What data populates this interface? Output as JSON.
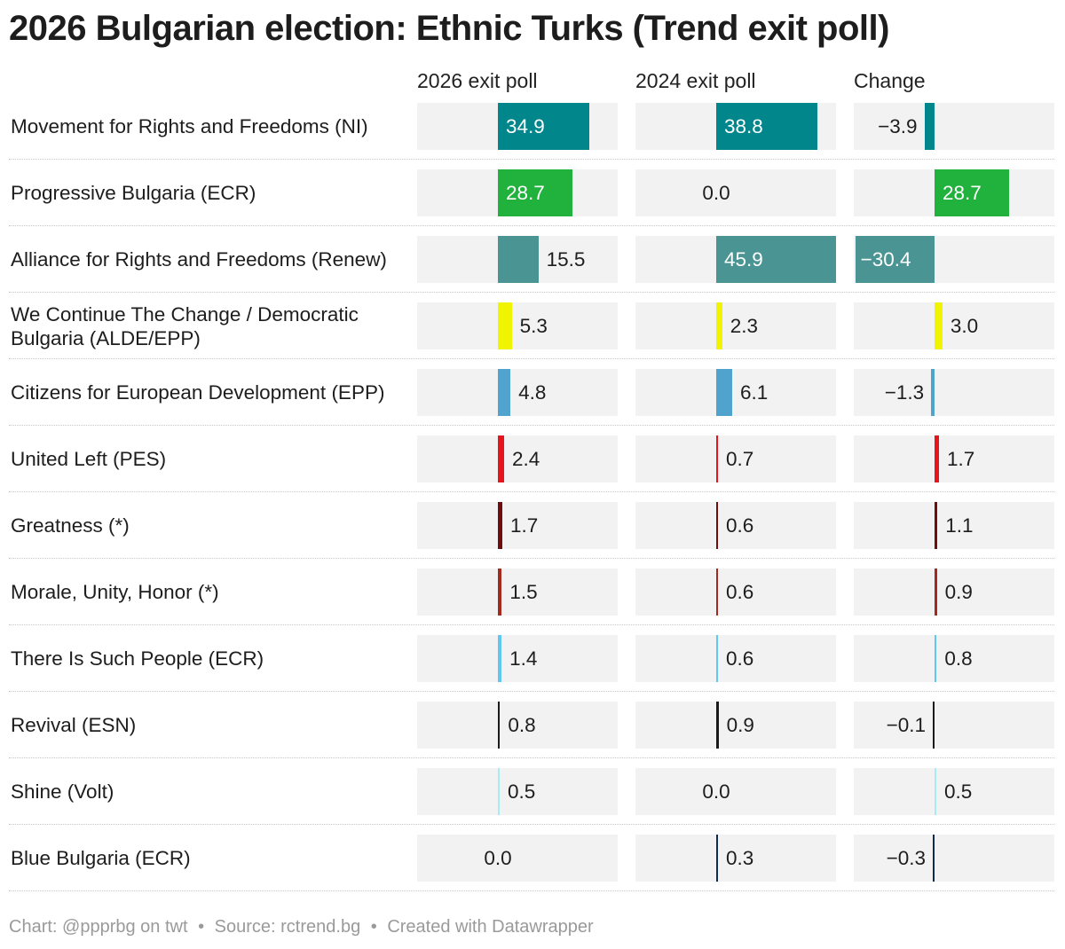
{
  "title": "2026 Bulgarian election: Ethnic Turks (Trend exit poll)",
  "footer": {
    "chart_credit": "Chart: @ppprbg on twt",
    "source": "Source: rctrend.bg",
    "created": "Created with Datawrapper",
    "separator": "•"
  },
  "chart_data": {
    "type": "table",
    "columns": [
      "2026 exit poll",
      "2024 exit poll",
      "Change"
    ],
    "rows": [
      {
        "party": "Movement for Rights and Freedoms (NI)",
        "color": "#00868b",
        "v2026": 34.9,
        "v2024": 38.8,
        "change": -3.9
      },
      {
        "party": "Progressive Bulgaria (ECR)",
        "color": "#21b23e",
        "v2026": 28.7,
        "v2024": 0.0,
        "change": 28.7
      },
      {
        "party": "Alliance for Rights and Freedoms (Renew)",
        "color": "#4a9594",
        "v2026": 15.5,
        "v2024": 45.9,
        "change": -30.4
      },
      {
        "party": "We Continue The Change / Democratic Bulgaria (ALDE/EPP)",
        "color": "#f0f400",
        "v2026": 5.3,
        "v2024": 2.3,
        "change": 3.0
      },
      {
        "party": "Citizens for European Development (EPP)",
        "color": "#4fa3cc",
        "v2026": 4.8,
        "v2024": 6.1,
        "change": -1.3
      },
      {
        "party": "United Left (PES)",
        "color": "#e8141b",
        "v2026": 2.4,
        "v2024": 0.7,
        "change": 1.7
      },
      {
        "party": "Greatness (*)",
        "color": "#6e0d0d",
        "v2026": 1.7,
        "v2024": 0.6,
        "change": 1.1
      },
      {
        "party": "Morale, Unity, Honor (*)",
        "color": "#a52a1e",
        "v2026": 1.5,
        "v2024": 0.6,
        "change": 0.9
      },
      {
        "party": "There Is Such People (ECR)",
        "color": "#5ec8f0",
        "v2026": 1.4,
        "v2024": 0.6,
        "change": 0.8
      },
      {
        "party": "Revival (ESN)",
        "color": "#1a1a1a",
        "v2026": 0.8,
        "v2024": 0.9,
        "change": -0.1
      },
      {
        "party": "Shine (Volt)",
        "color": "#a6ecf2",
        "v2026": 0.5,
        "v2024": 0.0,
        "change": 0.5
      },
      {
        "party": "Blue Bulgaria (ECR)",
        "color": "#102a52",
        "v2026": 0.0,
        "v2024": 0.3,
        "change": -0.3
      }
    ]
  }
}
